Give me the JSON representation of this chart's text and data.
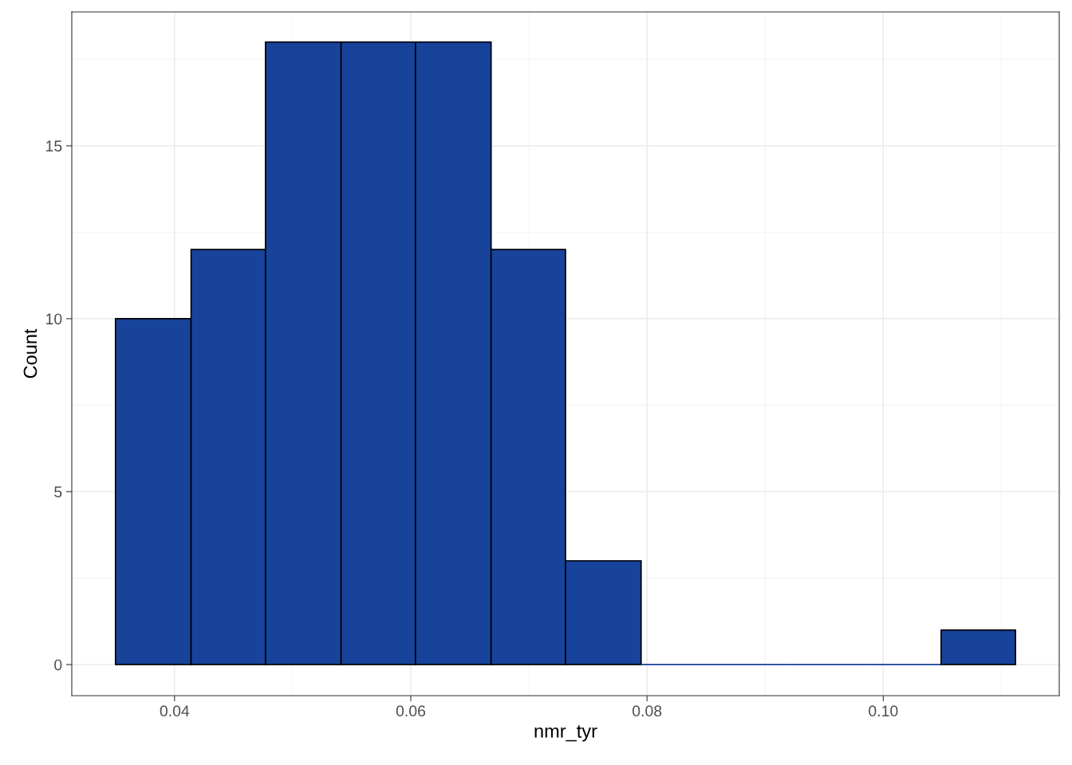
{
  "chart_data": {
    "type": "histogram",
    "xlabel": "nmr_tyr",
    "ylabel": "Count",
    "bins": [
      0.035,
      0.0414,
      0.0477,
      0.0541,
      0.0604,
      0.0668,
      0.0731,
      0.0795,
      0.0858,
      0.0922,
      0.0985,
      0.1049,
      0.1112
    ],
    "values": [
      10,
      12,
      18,
      18,
      18,
      12,
      3,
      0,
      0,
      0,
      0,
      1
    ],
    "color": "#17439b",
    "xlim": [
      0.0313,
      0.1149
    ],
    "ylim": [
      -0.9,
      18.87
    ],
    "xticks": [
      {
        "value": 0.04,
        "label": "0.04"
      },
      {
        "value": 0.06,
        "label": "0.06"
      },
      {
        "value": 0.08,
        "label": "0.08"
      },
      {
        "value": 0.1,
        "label": "0.10"
      }
    ],
    "yticks": [
      0,
      5,
      10,
      15
    ],
    "grid": true
  }
}
